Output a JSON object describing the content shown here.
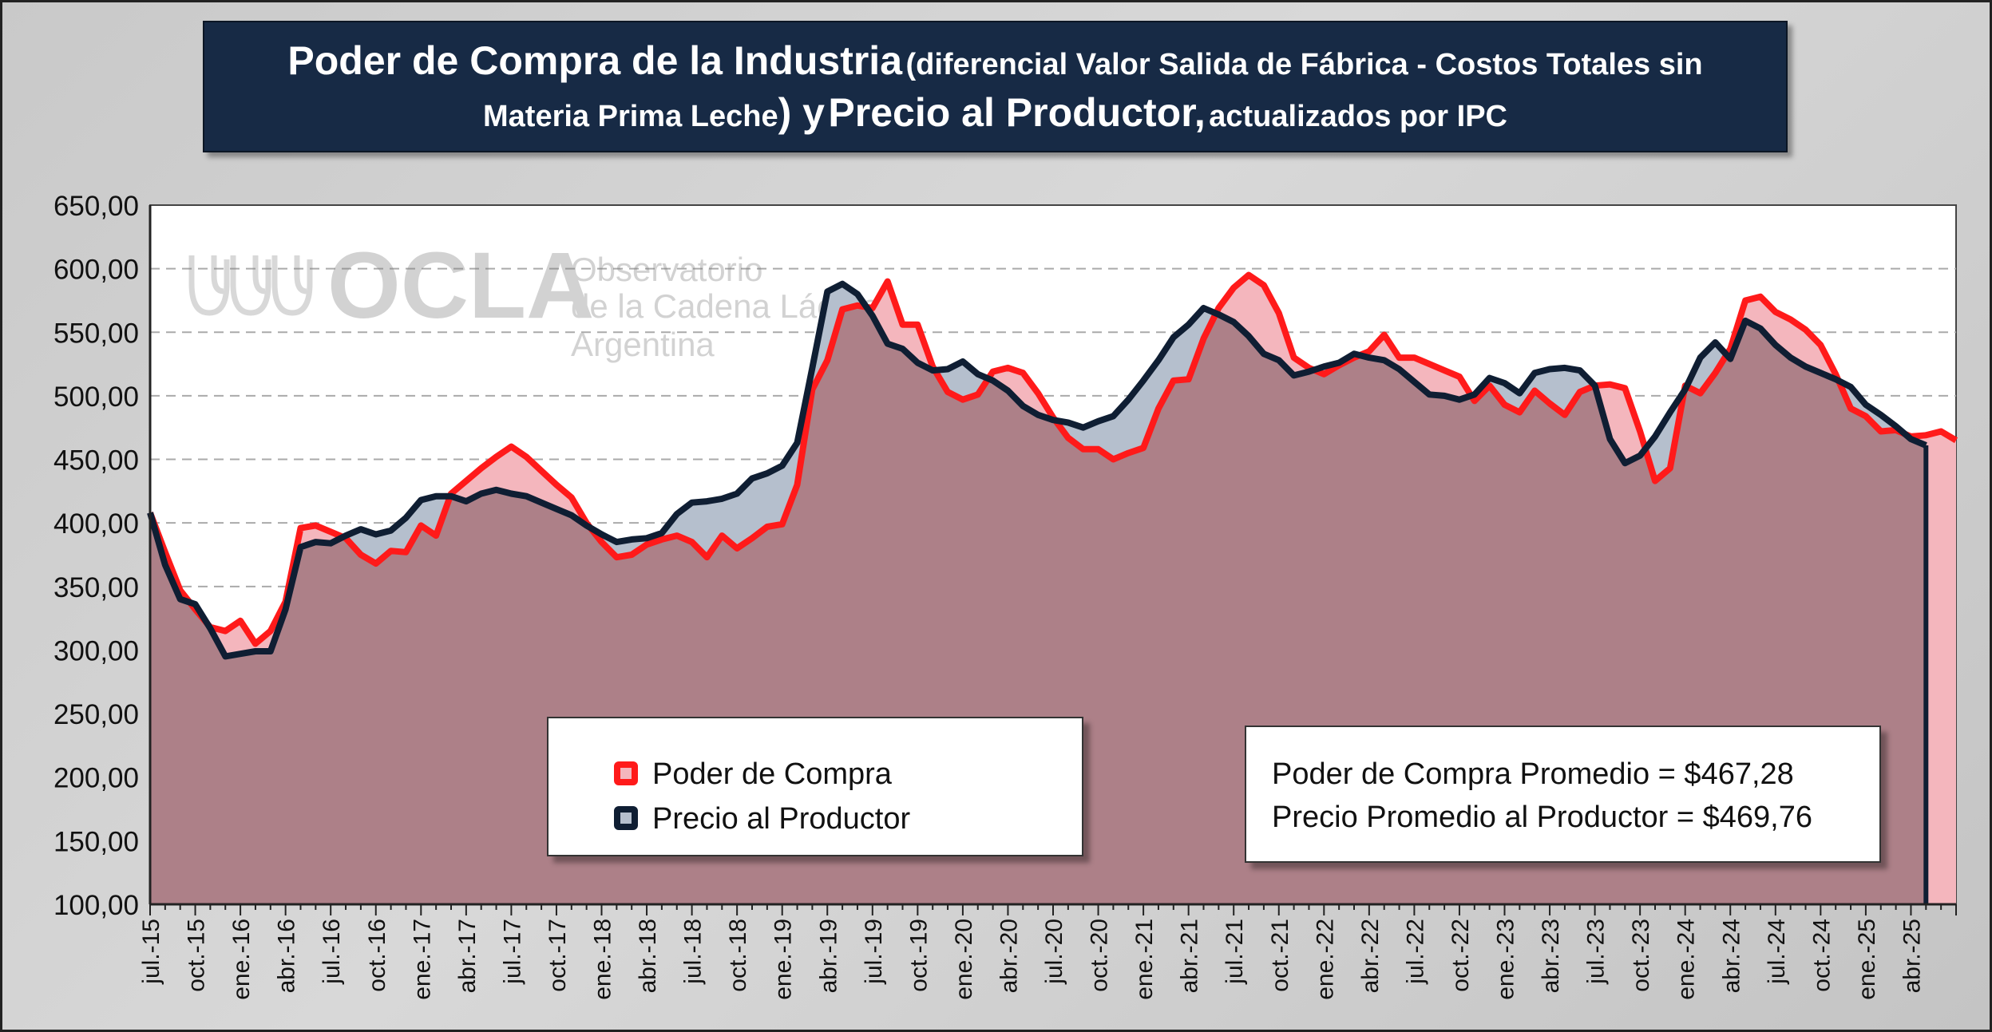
{
  "title": {
    "part1": "Poder de Compra de la Industria",
    "part2": "(diferencial Valor Salida de Fábrica - Costos Totales sin",
    "part3": "Materia Prima Leche",
    "part4": ") y",
    "part5": "Precio al Productor,",
    "part6": "actualizados por IPC"
  },
  "watermark": {
    "logo": "OCLA",
    "line1": "Observatorio",
    "line2": "de la Cadena Láctea",
    "line3": "Argentina"
  },
  "legend": {
    "poder": "Poder de Compra",
    "precio": "Precio al Productor"
  },
  "stats": {
    "line1": "Poder de Compra Promedio = $467,28",
    "line2": "Precio Promedio al Productor = $469,76"
  },
  "colors": {
    "poder_line": "#ff1a1a",
    "poder_fill": "#f4b6bd",
    "precio_line": "#0f1e33",
    "precio_fill": "#b5bfcd",
    "overlap_fill": "#ad8088",
    "title_bg": "#172a45"
  },
  "chart_data": {
    "type": "area",
    "ylim": [
      100,
      650
    ],
    "y_ticks": [
      "100,00",
      "150,00",
      "200,00",
      "250,00",
      "300,00",
      "350,00",
      "400,00",
      "450,00",
      "500,00",
      "550,00",
      "600,00",
      "650,00"
    ],
    "x_tick_labels": [
      "jul.-15",
      "oct.-15",
      "ene.-16",
      "abr.-16",
      "jul.-16",
      "oct.-16",
      "ene.-17",
      "abr.-17",
      "jul.-17",
      "oct.-17",
      "ene.-18",
      "abr.-18",
      "jul.-18",
      "oct.-18",
      "ene.-19",
      "abr.-19",
      "jul.-19",
      "oct.-19",
      "ene.-20",
      "abr.-20",
      "jul.-20",
      "oct.-20",
      "ene.-21",
      "abr.-21",
      "jul.-21",
      "oct.-21",
      "ene.-22",
      "abr.-22",
      "jul.-22",
      "oct.-22",
      "ene.-23",
      "abr.-23",
      "jul.-23",
      "oct.-23",
      "ene.-24",
      "abr.-24",
      "jul.-24",
      "oct.-24",
      "ene.-25",
      "abr.-25"
    ],
    "grid": true,
    "series": [
      {
        "name": "Poder de Compra",
        "values": [
          408,
          377,
          347,
          332,
          318,
          315,
          323,
          305,
          315,
          338,
          396,
          398,
          393,
          388,
          375,
          368,
          378,
          377,
          398,
          390,
          423,
          433,
          443,
          452,
          460,
          452,
          441,
          430,
          420,
          400,
          385,
          373,
          375,
          383,
          387,
          390,
          385,
          373,
          390,
          380,
          388,
          397,
          399,
          430,
          505,
          528,
          568,
          571,
          569,
          590,
          556,
          556,
          523,
          503,
          497,
          501,
          519,
          522,
          518,
          502,
          483,
          467,
          458,
          458,
          450,
          455,
          459,
          490,
          512,
          513,
          545,
          569,
          585,
          595,
          587,
          565,
          530,
          522,
          517,
          524,
          530,
          535,
          548,
          530,
          530,
          525,
          520,
          515,
          496,
          508,
          493,
          487,
          504,
          494,
          485,
          503,
          508,
          509,
          506,
          472,
          433,
          443,
          508,
          502,
          518,
          537,
          575,
          578,
          566,
          560,
          552,
          540,
          517,
          490,
          484,
          472,
          473,
          468,
          469,
          472,
          465
        ],
        "color": "#ff1a1a"
      },
      {
        "name": "Precio al Productor",
        "values": [
          408,
          367,
          340,
          336,
          317,
          295,
          297,
          299,
          299,
          332,
          381,
          385,
          384,
          390,
          395,
          391,
          394,
          404,
          418,
          421,
          421,
          417,
          423,
          426,
          423,
          421,
          416,
          411,
          406,
          398,
          391,
          385,
          387,
          388,
          392,
          407,
          416,
          417,
          419,
          423,
          435,
          439,
          445,
          463,
          522,
          582,
          588,
          580,
          563,
          541,
          537,
          526,
          520,
          521,
          527,
          517,
          512,
          504,
          492,
          485,
          481,
          479,
          475,
          480,
          484,
          497,
          512,
          528,
          546,
          556,
          569,
          564,
          558,
          547,
          533,
          528,
          516,
          519,
          523,
          526,
          533,
          530,
          528,
          521,
          511,
          501,
          500,
          497,
          501,
          514,
          510,
          502,
          518,
          521,
          522,
          520,
          508,
          466,
          447,
          453,
          468,
          487,
          505,
          530,
          542,
          529,
          559,
          553,
          540,
          530,
          523,
          518,
          513,
          507,
          493,
          485,
          476,
          466,
          461
        ]
      }
    ]
  }
}
